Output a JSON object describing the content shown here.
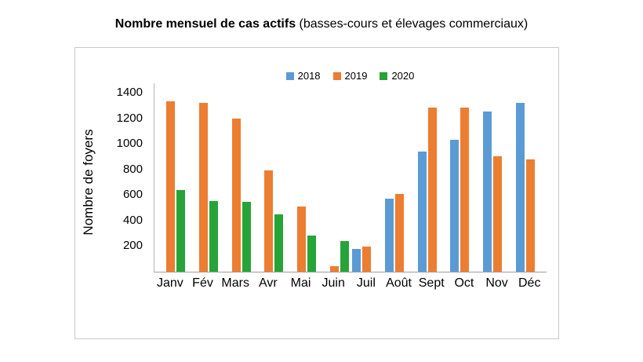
{
  "title": {
    "bold": "Nombre mensuel de cas actifs",
    "normal": " (basses-cours et élevages commerciaux)"
  },
  "chart_data": {
    "type": "bar",
    "title": "Nombre mensuel de cas actifs (basses-cours et élevages commerciaux)",
    "xlabel": "",
    "ylabel": "Nombre de foyers",
    "ylim": [
      0,
      1400
    ],
    "yticks": [
      200,
      400,
      600,
      800,
      1000,
      1200,
      1400
    ],
    "grid": false,
    "legend_position": "top",
    "categories": [
      "Janv",
      "Fév",
      "Mars",
      "Avr",
      "Mai",
      "Juin",
      "Juil",
      "Août",
      "Sept",
      "Oct",
      "Nov",
      "Déc"
    ],
    "series": [
      {
        "name": "2018",
        "color": "#5B9BD5",
        "values": [
          null,
          null,
          null,
          null,
          null,
          null,
          180,
          570,
          940,
          1030,
          1250,
          1320
        ]
      },
      {
        "name": "2019",
        "color": "#ED7D31",
        "values": [
          1330,
          1320,
          1200,
          790,
          510,
          45,
          195,
          605,
          1285,
          1285,
          905,
          880
        ]
      },
      {
        "name": "2020",
        "color": "#27A438",
        "values": [
          640,
          555,
          545,
          450,
          280,
          240,
          null,
          null,
          null,
          null,
          null,
          null
        ]
      }
    ]
  }
}
